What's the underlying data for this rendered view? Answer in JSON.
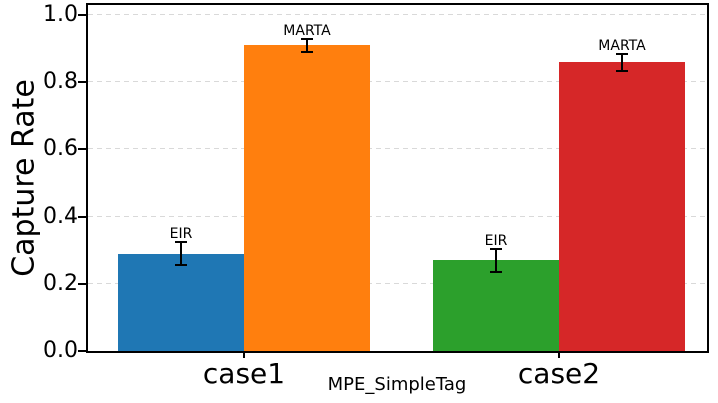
{
  "figure": {
    "background": "#ffffff",
    "spine_color": "#000000"
  },
  "chart_data": {
    "type": "bar",
    "title": "",
    "xlabel": "MPE_SimpleTag",
    "ylabel": "Capture Rate",
    "categories": [
      "case1",
      "case2"
    ],
    "series": [
      {
        "name": "EIR",
        "values": [
          0.29,
          0.27
        ],
        "errors": [
          0.035,
          0.035
        ],
        "colors": [
          "#1f77b4",
          "#2ca02c"
        ]
      },
      {
        "name": "MARTA",
        "values": [
          0.91,
          0.86
        ],
        "errors": [
          0.02,
          0.025
        ],
        "colors": [
          "#ff7f0e",
          "#d62728"
        ]
      }
    ],
    "bar_value_labels": [
      "EIR",
      "MARTA"
    ],
    "yticks": [
      0,
      0.2,
      0.4,
      0.6,
      0.8,
      1.0
    ],
    "ytick_format": "one_decimal",
    "ylim": [
      0,
      1.03
    ],
    "grid": {
      "axis": "y",
      "style": "dashed",
      "color": "#d9d9d9"
    },
    "error_bars": {
      "color": "#000000",
      "capsize": 12
    },
    "legend": "none"
  }
}
